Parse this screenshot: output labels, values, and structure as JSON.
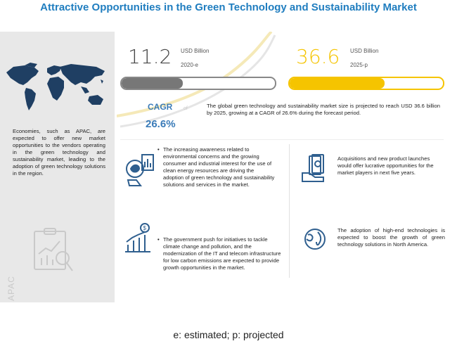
{
  "title": "Attractive Opportunities in the Green Technology and Sustainability Market",
  "left": {
    "text": "Economies, such as APAC, are expected to offer new market opportunities to the vendors operating in the green technology and sustainability market, leading to the adoption of green technology solutions in the region.",
    "region_label": "APAC"
  },
  "market": {
    "value_2020": "11.2",
    "unit_2020": "USD Billion",
    "year_2020": "2020-e",
    "value_2025": "36.6",
    "unit_2025": "USD Billion",
    "year_2025": "2025-p",
    "bar_2020_fill_fraction": 0.4,
    "bar_2025_fill_fraction": 0.62,
    "color_2020": "#777777",
    "color_2025": "#f5c400"
  },
  "cagr": {
    "label": "CAGR",
    "of_label": "of",
    "value": "26.6%"
  },
  "summary": "The global green technology and sustainability market size is projected to reach USD 36.6 billion by 2025, growing at a CAGR of 26.6% during the forecast period.",
  "bullets": [
    {
      "text": "The increasing awareness related to environmental concerns and the growing consumer and industrial interest for the use of clean energy resources are driving the adoption of green technology and sustainability solutions and services in the market.",
      "icon": "eco-chart-icon"
    },
    {
      "text": "Acquisitions and new product launches would offer lucrative opportunities for the market players in next five years.",
      "icon": "money-hand-icon"
    },
    {
      "text": "The government push for initiatives to tackle climate change and pollution, and the modernization of the IT and telecom infrastructure for low carbon emissions are expected to provide growth opportunities in the market.",
      "icon": "growth-dollar-icon"
    },
    {
      "text": "The adoption of high-end technologies is expected to boost the growth of green technology solutions in North America.",
      "icon": "globe-icon"
    }
  ],
  "footnote": "e: estimated; p: projected"
}
